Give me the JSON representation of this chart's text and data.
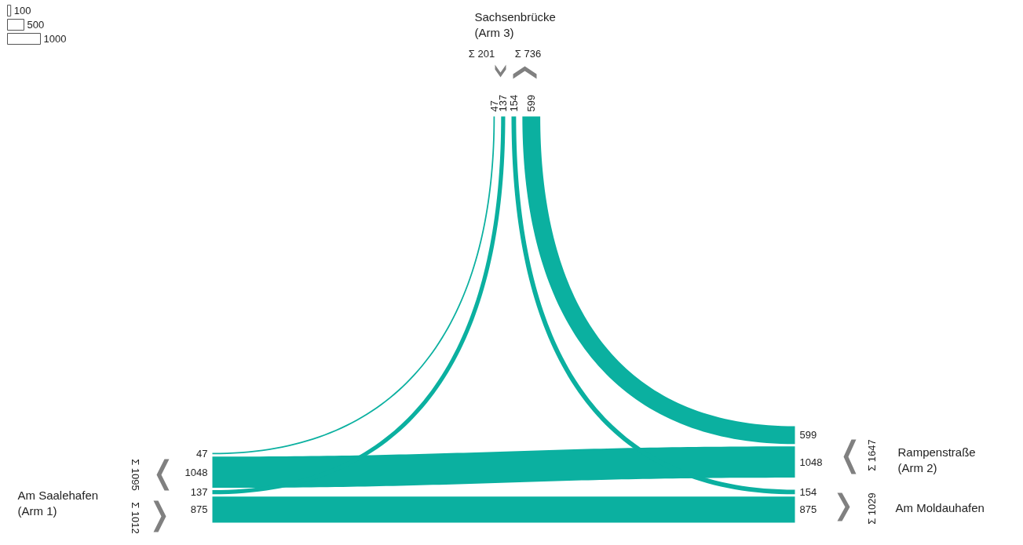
{
  "chart_data": {
    "type": "other",
    "categories": [
      "Am Saalehafen\n(Arm 1)",
      "Rampenstraße\n(Arm 2)",
      "Sachsenbrücke\n(Arm 3)",
      "Am Moldauhafen"
    ],
    "series": [
      {
        "color": "#0bb0a0",
        "values": [
          47,
          null,
          47,
          null
        ]
      },
      {
        "color": "#0bb0a0",
        "values": [
          1048,
          1048,
          null,
          null
        ]
      },
      {
        "color": "#0bb0a0",
        "values": [
          137,
          null,
          137,
          null
        ]
      },
      {
        "color": "#0bb0a0",
        "values": [
          875,
          null,
          null,
          875
        ]
      },
      {
        "color": "#0bb0a0",
        "values": [
          null,
          null,
          154,
          154
        ]
      },
      {
        "color": "#0bb0a0",
        "values": [
          null,
          599,
          599,
          null
        ]
      }
    ],
    "data_labels": true,
    "totals": [
      "Σ 1095",
      "Σ 1012",
      "Σ 1647",
      "Σ 201",
      "Σ 736",
      "Σ 1029"
    ],
    "annotations": [
      "100",
      "500",
      "1000"
    ]
  }
}
